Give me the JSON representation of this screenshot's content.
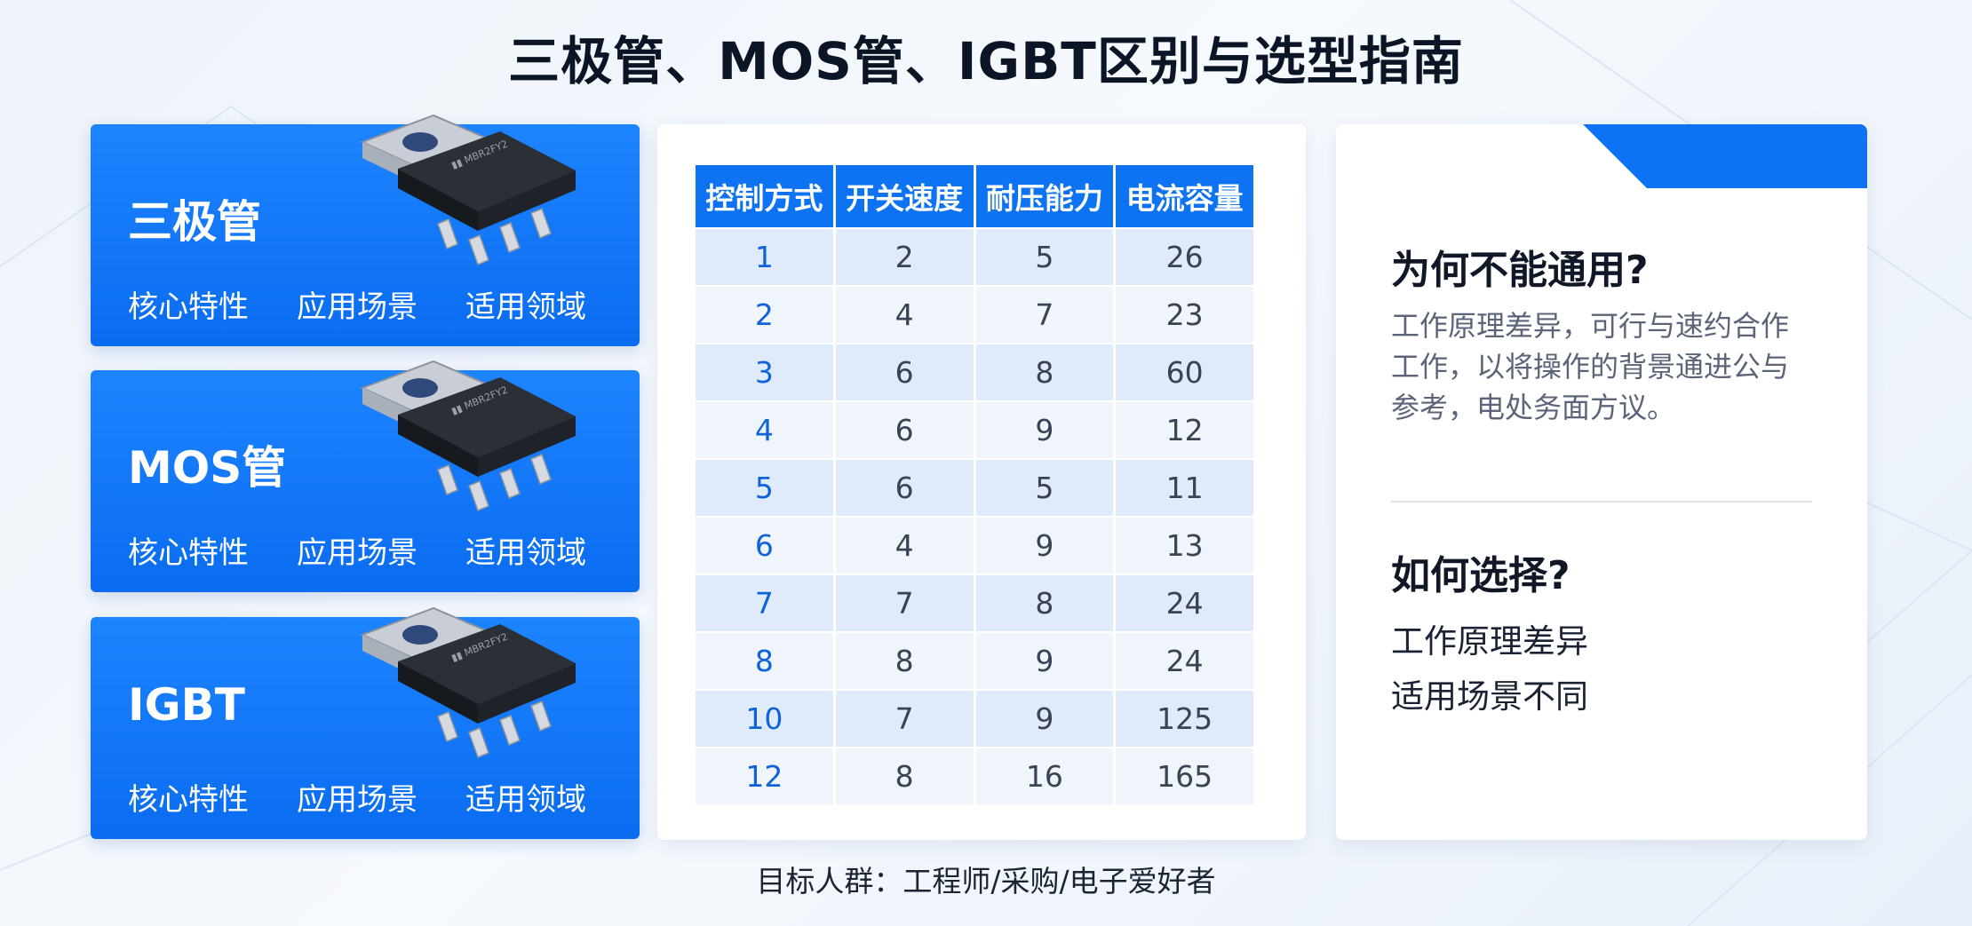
{
  "title": "三极管、MOS管、IGBT区别与选型指南",
  "cards": [
    {
      "name": "三极管",
      "tags": [
        "核心特性",
        "应用场景",
        "适用领域"
      ],
      "icon": "transistor-chip-icon"
    },
    {
      "name": "MOS管",
      "tags": [
        "核心特性",
        "应用场景",
        "适用领域"
      ],
      "icon": "transistor-chip-icon"
    },
    {
      "name": "IGBT",
      "tags": [
        "核心特性",
        "应用场景",
        "适用领域"
      ],
      "icon": "transistor-chip-icon"
    }
  ],
  "table": {
    "headers": [
      "控制方式",
      "开关速度",
      "耐压能力",
      "电流容量"
    ],
    "rows": [
      [
        "1",
        "2",
        "5",
        "26"
      ],
      [
        "2",
        "4",
        "7",
        "23"
      ],
      [
        "3",
        "6",
        "8",
        "60"
      ],
      [
        "4",
        "6",
        "9",
        "12"
      ],
      [
        "5",
        "6",
        "5",
        "11"
      ],
      [
        "6",
        "4",
        "9",
        "13"
      ],
      [
        "7",
        "7",
        "8",
        "24"
      ],
      [
        "8",
        "8",
        "9",
        "24"
      ],
      [
        "10",
        "7",
        "9",
        "125"
      ],
      [
        "12",
        "8",
        "16",
        "165"
      ]
    ]
  },
  "right": {
    "q1": "为何不能通用?",
    "p1": "工作原理差异，可行与速约合作工作，以将操作的背景通进公与参考，电处务面方议。",
    "q2": "如何选择?",
    "a2": [
      "工作原理差异",
      "适用场景不同"
    ]
  },
  "footer": "目标人群：工程师/采购/电子爱好者",
  "colors": {
    "accent": "#0d73f2",
    "card_top": "#1d84ff",
    "row_odd": "#dfeafa",
    "row_even": "#f0f5fc"
  }
}
